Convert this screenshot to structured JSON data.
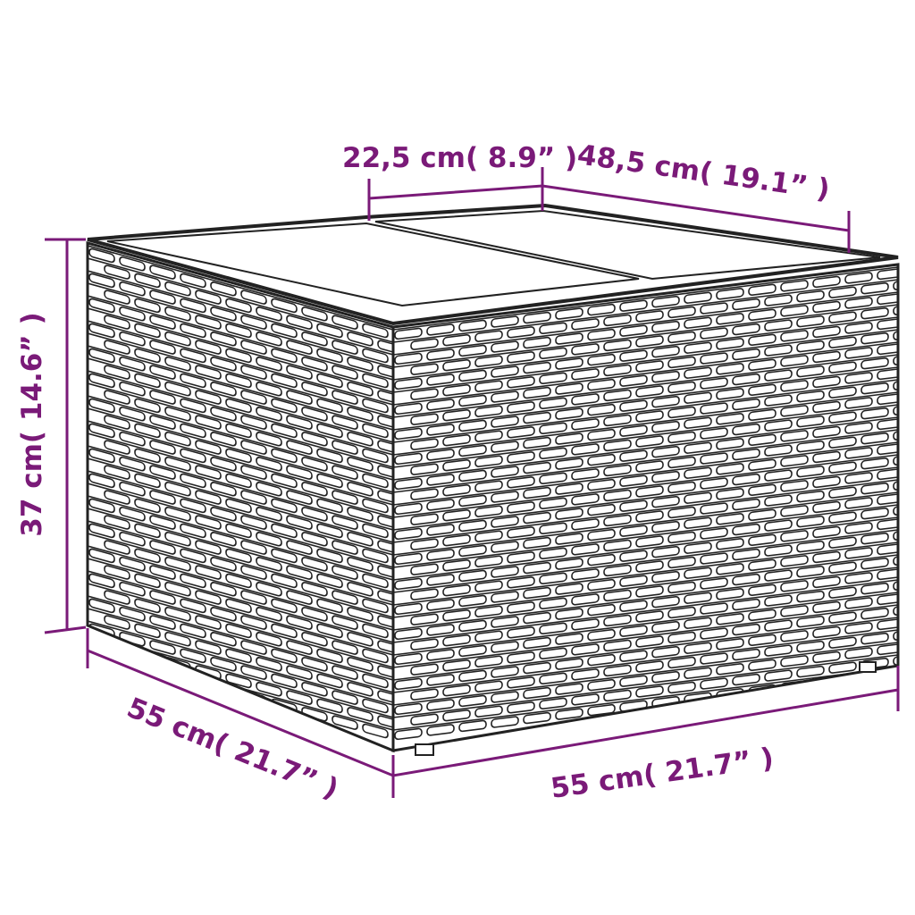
{
  "colors": {
    "accent": "#7a1a78",
    "outline": "#222222"
  },
  "product": {
    "description_icon": "wicker-storage-box-with-lid-icon"
  },
  "dimensions": {
    "lid_section": "22,5 cm( 8.9”  )",
    "depth_top": "48,5 cm( 19.1”  )",
    "height": "37 cm( 14.6”  )",
    "side_width": "55 cm( 21.7”  )",
    "front_width": "55 cm( 21.7”  )"
  }
}
